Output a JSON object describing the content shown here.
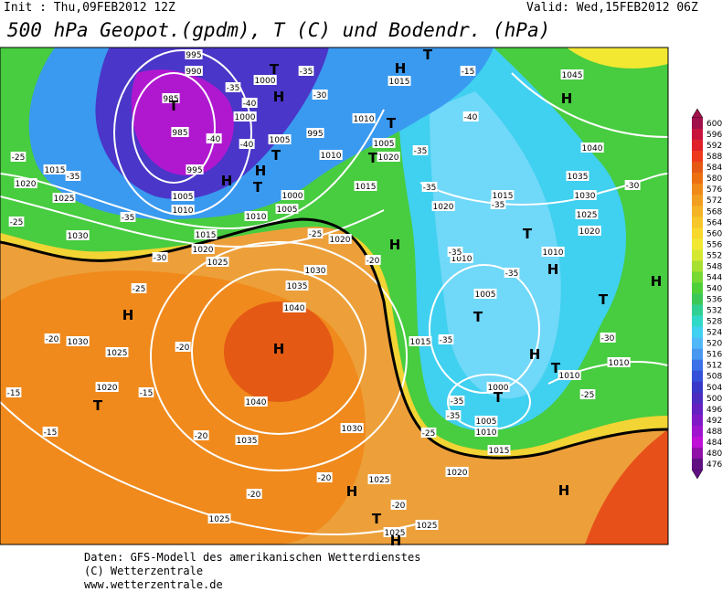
{
  "header": {
    "init": "Init : Thu,09FEB2012 12Z",
    "valid": "Valid: Wed,15FEB2012 06Z",
    "title": "500 hPa Geopot.(gpdm), T (C) und Bodendr. (hPa)"
  },
  "colorbar": {
    "labels": [
      "600",
      "596",
      "592",
      "588",
      "584",
      "580",
      "576",
      "572",
      "568",
      "564",
      "560",
      "556",
      "552",
      "548",
      "544",
      "540",
      "536",
      "532",
      "528",
      "524",
      "520",
      "516",
      "512",
      "508",
      "504",
      "500",
      "496",
      "492",
      "488",
      "484",
      "480",
      "476"
    ],
    "colors": [
      "#a0104a",
      "#c8143c",
      "#e0202a",
      "#ee3a1c",
      "#e45a14",
      "#ec7010",
      "#f08a18",
      "#f29e20",
      "#f4b426",
      "#f6c62a",
      "#f8d82c",
      "#f2e832",
      "#d4e832",
      "#a8e032",
      "#78d834",
      "#50d038",
      "#3cc858",
      "#30d094",
      "#30d8c8",
      "#40d0f0",
      "#50b8f8",
      "#4898f0",
      "#3c70e8",
      "#3450d8",
      "#3838c8",
      "#4c2cc0",
      "#6420c0",
      "#8018c8",
      "#a014d0",
      "#c010d8",
      "#9010a8",
      "#601080"
    ]
  },
  "map_labels": [
    "995",
    "990",
    "985",
    "985",
    "995",
    "1005",
    "1010",
    "1000",
    "1000",
    "1005",
    "995",
    "1010",
    "1010",
    "1005",
    "1020",
    "1015",
    "1015",
    "1020",
    "1025",
    "1030",
    "1015",
    "1020",
    "1025",
    "1010",
    "1005",
    "1000",
    "1015",
    "1020",
    "1030",
    "1035",
    "1040",
    "1040",
    "1035",
    "1030",
    "1025",
    "1025",
    "1025",
    "1025",
    "1020",
    "1015",
    "1010",
    "1005",
    "1000",
    "1015",
    "1005",
    "1010",
    "1010",
    "1015",
    "1020",
    "1030",
    "1025",
    "1020",
    "1035",
    "1040",
    "1045",
    "1010",
    "1010",
    "1030",
    "1025",
    "1020",
    "-35",
    "-35",
    "-40",
    "-40",
    "-40",
    "-30",
    "-25",
    "-35",
    "-35",
    "-25",
    "-30",
    "-25",
    "-20",
    "-20",
    "-15",
    "-15",
    "-15",
    "-20",
    "-20",
    "-20",
    "-20",
    "-35",
    "-35",
    "-40",
    "-15",
    "-35",
    "-35",
    "-35",
    "-35",
    "-35",
    "-35",
    "-30",
    "-30",
    "-25",
    "-25",
    "-20",
    "-25",
    "T",
    "T",
    "H",
    "T",
    "H",
    "T",
    "H",
    "H",
    "T",
    "T",
    "T",
    "H",
    "H",
    "H",
    "T",
    "T",
    "H",
    "T",
    "H",
    "T",
    "H",
    "T",
    "T",
    "H",
    "H",
    "T",
    "H",
    "H"
  ],
  "footer": [
    "Daten: GFS-Modell des amerikanischen Wetterdienstes",
    "(C) Wetterzentrale",
    "www.wetterzentrale.de"
  ]
}
